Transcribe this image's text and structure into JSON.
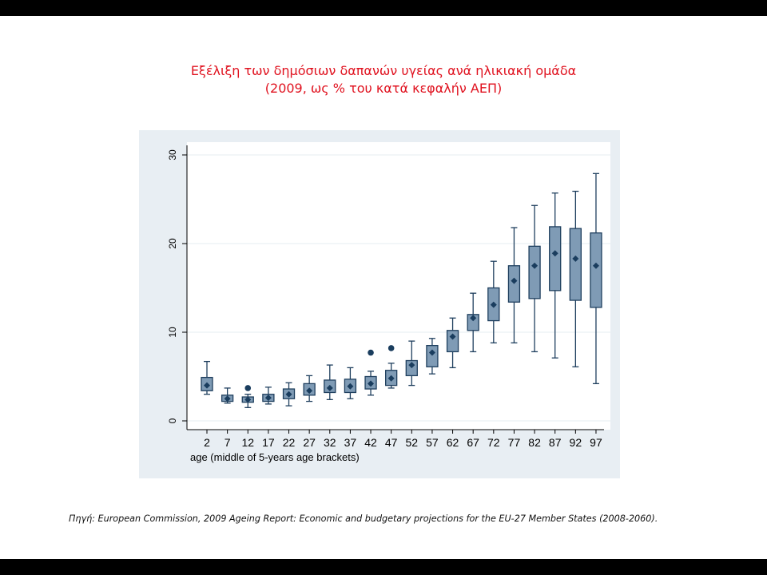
{
  "slide": {
    "title_line1": "Εξέλιξη των δημόσιων δαπανών υγείας ανά ηλικιακή ομάδα",
    "title_line2": "(2009, ως % του κατά κεφαλήν ΑΕΠ)",
    "source_label": "Πηγή:",
    "source_text": " European Commission, 2009 Ageing Report: Economic and budgetary projections for the EU-27 Member States (2008-2060)."
  },
  "colors": {
    "title": "#e0121f",
    "panel_background": "#e8eef3",
    "plot_background": "#ffffff",
    "box_fill": "#7f9bb5",
    "box_stroke": "#1f3f5e",
    "median_marker": "#1a3d5e",
    "gridline": "#e6ecf1"
  },
  "chart_data": {
    "type": "box",
    "title": "",
    "xlabel": "age (middle of 5-years age brackets)",
    "ylabel": "",
    "ylim": [
      0,
      30
    ],
    "yticks": [
      0,
      10,
      20,
      30
    ],
    "grid": true,
    "legend": "none",
    "categories": [
      "2",
      "7",
      "12",
      "17",
      "22",
      "27",
      "32",
      "37",
      "42",
      "47",
      "52",
      "57",
      "62",
      "67",
      "72",
      "77",
      "82",
      "87",
      "92",
      "97"
    ],
    "boxes": [
      {
        "min": 3.0,
        "q1": 3.4,
        "median": 4.0,
        "q3": 4.9,
        "max": 6.7,
        "outliers": []
      },
      {
        "min": 2.0,
        "q1": 2.2,
        "median": 2.5,
        "q3": 2.9,
        "max": 3.7,
        "outliers": []
      },
      {
        "min": 1.5,
        "q1": 2.1,
        "median": 2.4,
        "q3": 2.7,
        "max": 3.0,
        "outliers": [
          3.7
        ]
      },
      {
        "min": 1.9,
        "q1": 2.2,
        "median": 2.6,
        "q3": 3.0,
        "max": 3.8,
        "outliers": []
      },
      {
        "min": 1.7,
        "q1": 2.5,
        "median": 3.0,
        "q3": 3.6,
        "max": 4.3,
        "outliers": []
      },
      {
        "min": 2.2,
        "q1": 2.9,
        "median": 3.4,
        "q3": 4.2,
        "max": 5.1,
        "outliers": []
      },
      {
        "min": 2.4,
        "q1": 3.2,
        "median": 3.7,
        "q3": 4.6,
        "max": 6.3,
        "outliers": []
      },
      {
        "min": 2.5,
        "q1": 3.2,
        "median": 3.9,
        "q3": 4.7,
        "max": 6.0,
        "outliers": []
      },
      {
        "min": 2.9,
        "q1": 3.6,
        "median": 4.2,
        "q3": 5.0,
        "max": 5.6,
        "outliers": [
          7.7
        ]
      },
      {
        "min": 3.7,
        "q1": 4.0,
        "median": 4.8,
        "q3": 5.7,
        "max": 6.5,
        "outliers": [
          8.2
        ]
      },
      {
        "min": 4.0,
        "q1": 5.1,
        "median": 6.3,
        "q3": 6.8,
        "max": 9.0,
        "outliers": []
      },
      {
        "min": 5.3,
        "q1": 6.1,
        "median": 7.7,
        "q3": 8.5,
        "max": 9.3,
        "outliers": []
      },
      {
        "min": 6.0,
        "q1": 7.8,
        "median": 9.5,
        "q3": 10.2,
        "max": 11.6,
        "outliers": []
      },
      {
        "min": 7.8,
        "q1": 10.2,
        "median": 11.6,
        "q3": 12.0,
        "max": 14.4,
        "outliers": []
      },
      {
        "min": 8.8,
        "q1": 11.3,
        "median": 13.1,
        "q3": 15.0,
        "max": 18.0,
        "outliers": []
      },
      {
        "min": 8.8,
        "q1": 13.4,
        "median": 15.8,
        "q3": 17.5,
        "max": 21.8,
        "outliers": []
      },
      {
        "min": 7.8,
        "q1": 13.8,
        "median": 17.5,
        "q3": 19.7,
        "max": 24.3,
        "outliers": []
      },
      {
        "min": 7.1,
        "q1": 14.7,
        "median": 18.9,
        "q3": 21.9,
        "max": 25.7,
        "outliers": []
      },
      {
        "min": 6.1,
        "q1": 13.6,
        "median": 18.3,
        "q3": 21.7,
        "max": 25.9,
        "outliers": []
      },
      {
        "min": 4.2,
        "q1": 12.8,
        "median": 17.5,
        "q3": 21.2,
        "max": 27.9,
        "outliers": []
      }
    ]
  }
}
